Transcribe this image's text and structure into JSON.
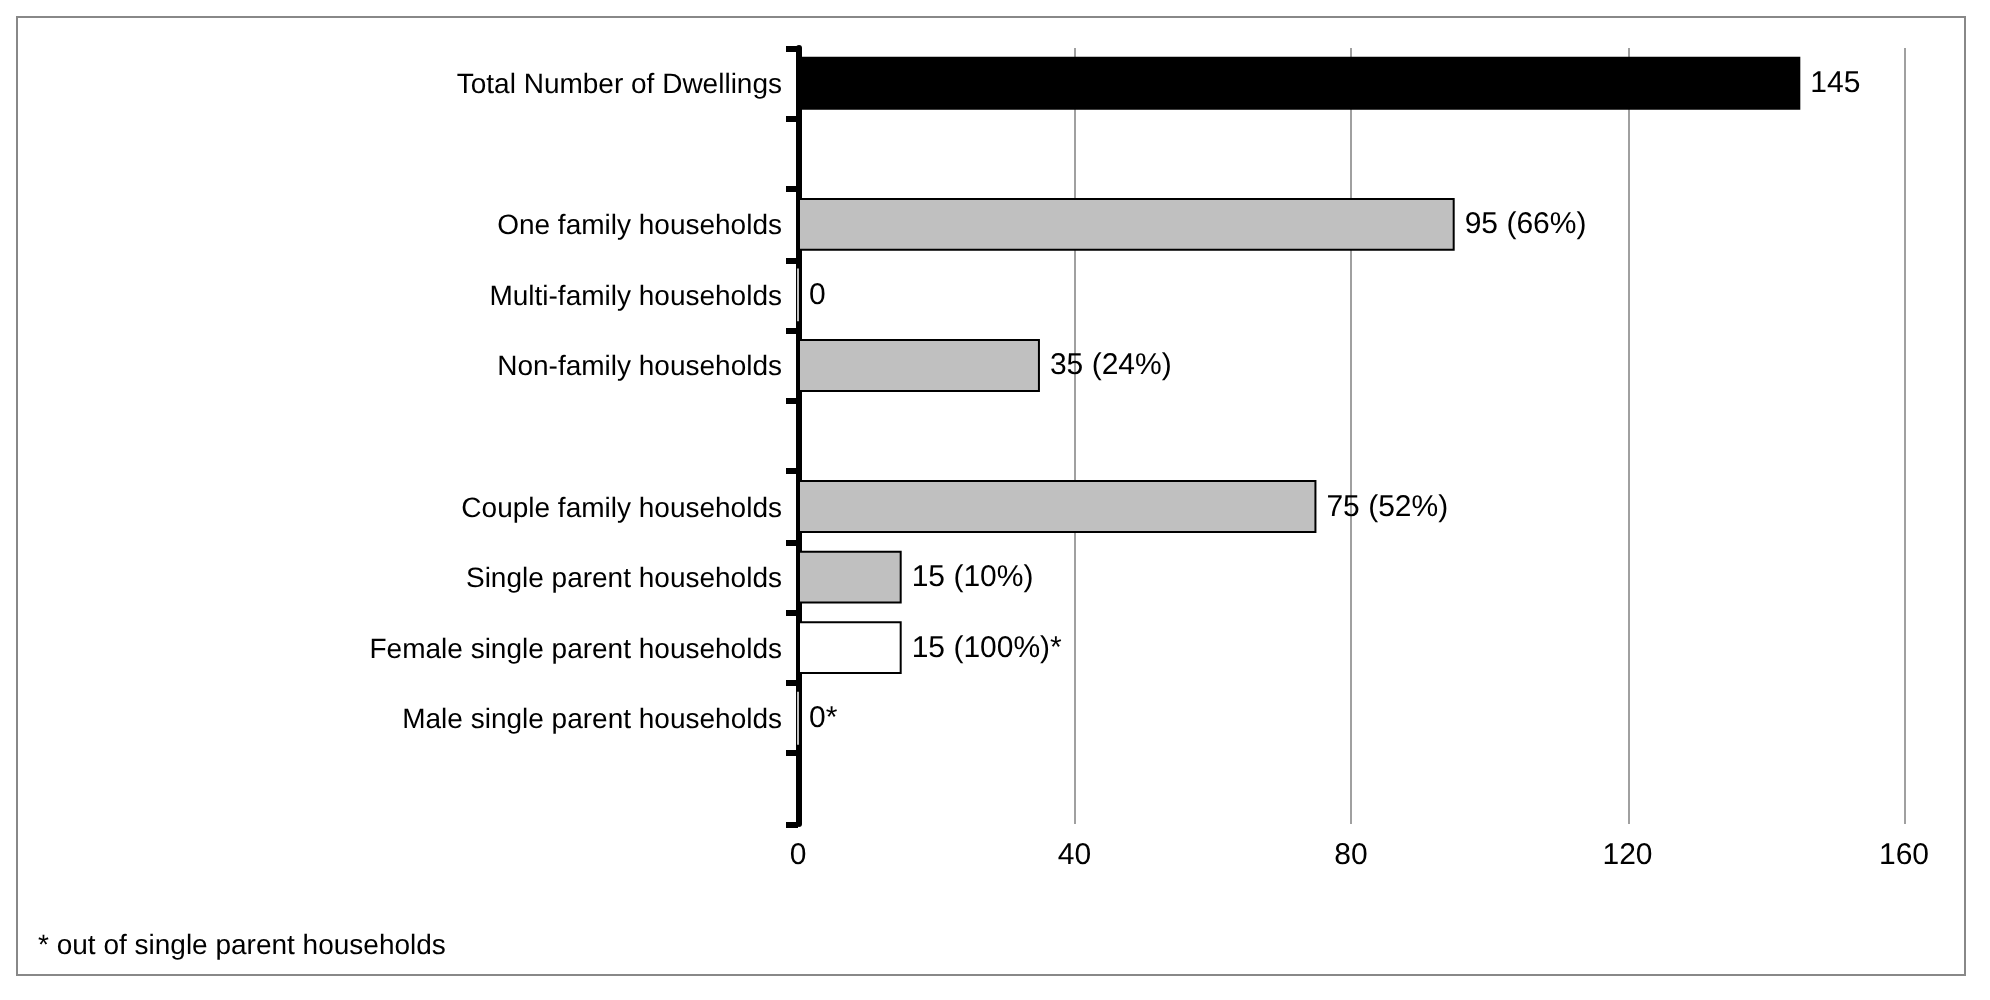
{
  "chart_data": {
    "type": "bar",
    "orientation": "horizontal",
    "categories": [
      "Total Number of Dwellings",
      null,
      "One family households",
      "Multi-family households",
      "Non-family households",
      null,
      "Couple family households",
      "Single parent households",
      "Female single parent households",
      "Male single parent households",
      null
    ],
    "values": [
      145,
      null,
      95,
      0,
      35,
      null,
      75,
      15,
      15,
      0,
      null
    ],
    "colors": [
      "#000000",
      null,
      "#c0c0c0",
      "#c0c0c0",
      "#c0c0c0",
      null,
      "#c0c0c0",
      "#c0c0c0",
      "#ffffff",
      "#c0c0c0",
      null
    ],
    "value_labels": [
      "145",
      null,
      "95 (66%)",
      "0",
      "35 (24%)",
      null,
      "75 (52%)",
      "15 (10%)",
      "15 (100%)*",
      "0*",
      null
    ],
    "xlim": [
      0,
      160
    ],
    "xticks": [
      0,
      40,
      80,
      120,
      160
    ],
    "grid": "x",
    "annotations": [
      "* out of single parent households"
    ]
  }
}
